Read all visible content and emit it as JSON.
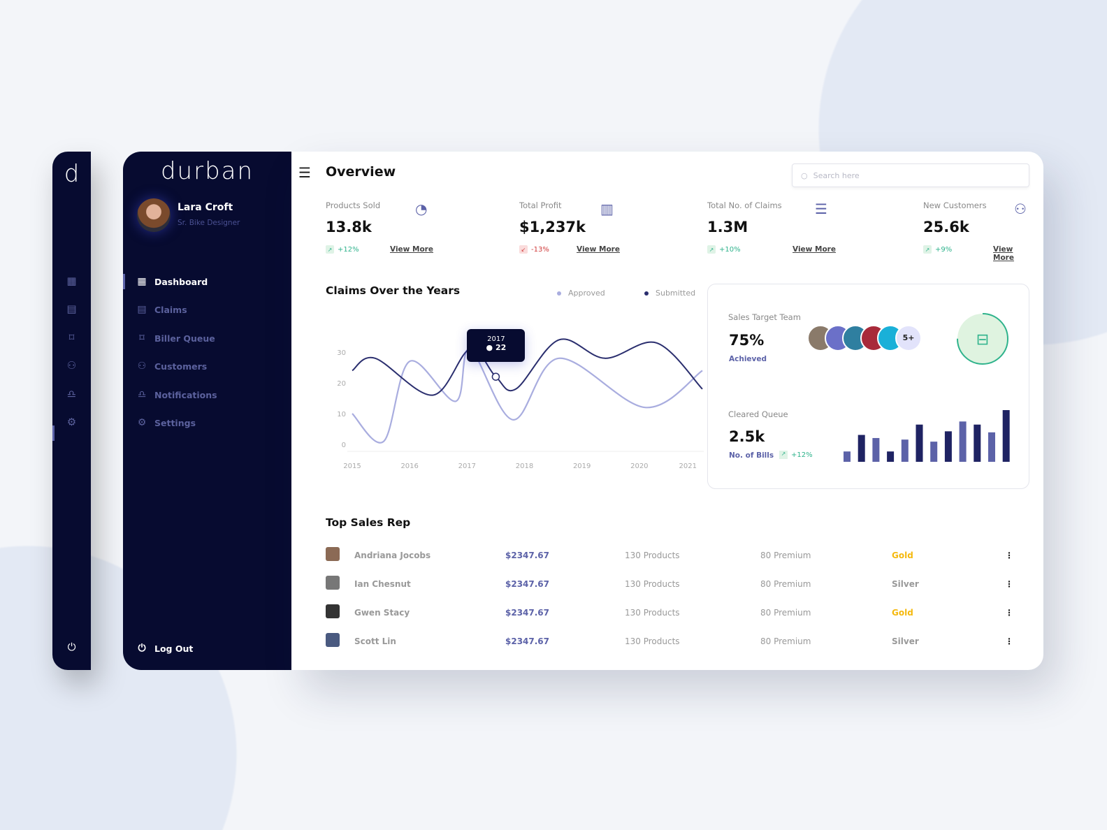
{
  "rail": {
    "logo": "d",
    "icons": [
      "grid-icon",
      "claims-icon",
      "bookmark-icon",
      "users-icon",
      "bell-icon",
      "gear-icon"
    ],
    "logout_icon": "power-icon"
  },
  "sidebar": {
    "brand": "durban",
    "user": {
      "name": "Lara Croft",
      "role": "Sr. Bike Designer"
    },
    "items": [
      {
        "label": "Dashboard",
        "icon": "grid-icon",
        "active": true
      },
      {
        "label": "Claims",
        "icon": "document-icon"
      },
      {
        "label": "Biller Queue",
        "icon": "bookmark-icon"
      },
      {
        "label": "Customers",
        "icon": "users-icon"
      },
      {
        "label": "Notifications",
        "icon": "bell-icon"
      },
      {
        "label": "Settings",
        "icon": "gear-icon"
      }
    ],
    "logout": "Log Out"
  },
  "header": {
    "title": "Overview",
    "search_placeholder": "Search here"
  },
  "kpis": [
    {
      "label": "Products Sold",
      "value": "13.8k",
      "change": "+12%",
      "trend": "up",
      "link": "View More",
      "icon": "pie-chart-icon"
    },
    {
      "label": "Total Profit",
      "value": "$1,237k",
      "change": "-13%",
      "trend": "down",
      "link": "View More",
      "icon": "bar-chart-icon"
    },
    {
      "label": "Total No. of Claims",
      "value": "1.3M",
      "change": "+10%",
      "trend": "up",
      "link": "View More",
      "icon": "list-icon"
    },
    {
      "label": "New Customers",
      "value": "25.6k",
      "change": "+9%",
      "trend": "up",
      "link": "View More",
      "icon": "customers-icon"
    }
  ],
  "chart_data": {
    "type": "line",
    "title": "Claims Over the Years",
    "x_ticks": [
      "2015",
      "2016",
      "2017",
      "2018",
      "2019",
      "2020",
      "2021"
    ],
    "y_ticks": [
      "0",
      "10",
      "20",
      "30",
      "40"
    ],
    "ylim": [
      0,
      40
    ],
    "legend_placement": "top-right",
    "series": [
      {
        "name": "Approved",
        "color": "#a9addf",
        "x": [
          2015,
          2015.55,
          2016,
          2016.8,
          2017.05,
          2017.8,
          2018.6,
          2020.1,
          2021.15
        ],
        "y": [
          10,
          1,
          27,
          14,
          31,
          8,
          28,
          12,
          24
        ]
      },
      {
        "name": "Submitted",
        "color": "#2a2e6e",
        "x": [
          2015,
          2015.4,
          2016.4,
          2017.05,
          2017.5,
          2017.85,
          2018.6,
          2019.4,
          2020.3,
          2021.15
        ],
        "y": [
          24,
          28,
          16,
          31,
          22,
          18,
          34,
          28,
          33,
          18
        ]
      }
    ],
    "tooltip": {
      "year": "2017",
      "value": "22"
    }
  },
  "sales_target": {
    "label": "Sales Target Team",
    "value": "75%",
    "progress": 75,
    "sub": "Achieved",
    "more": "5+",
    "icon": "basket-icon"
  },
  "cleared_queue": {
    "label": "Cleared Queue",
    "value": "2.5k",
    "sub": "No. of Bills",
    "change": "+12%",
    "bars": [
      20,
      52,
      46,
      20,
      43,
      72,
      39,
      59,
      78,
      72,
      57,
      100
    ]
  },
  "top_sales": {
    "title": "Top Sales Rep",
    "rows": [
      {
        "name": "Andriana Jocobs",
        "amount": "$2347.67",
        "products": "130 Products",
        "premium": "80 Premium",
        "tier": "Gold"
      },
      {
        "name": "Ian Chesnut",
        "amount": "$2347.67",
        "products": "130 Products",
        "premium": "80 Premium",
        "tier": "Silver"
      },
      {
        "name": "Gwen Stacy",
        "amount": "$2347.67",
        "products": "130 Products",
        "premium": "80 Premium",
        "tier": "Gold"
      },
      {
        "name": "Scott Lin",
        "amount": "$2347.67",
        "products": "130 Products",
        "premium": "80 Premium",
        "tier": "Silver"
      }
    ]
  },
  "colors": {
    "navy": "#070b30",
    "accent": "#5c62a8",
    "green": "#2fb38c",
    "gold": "#f5b90f"
  }
}
